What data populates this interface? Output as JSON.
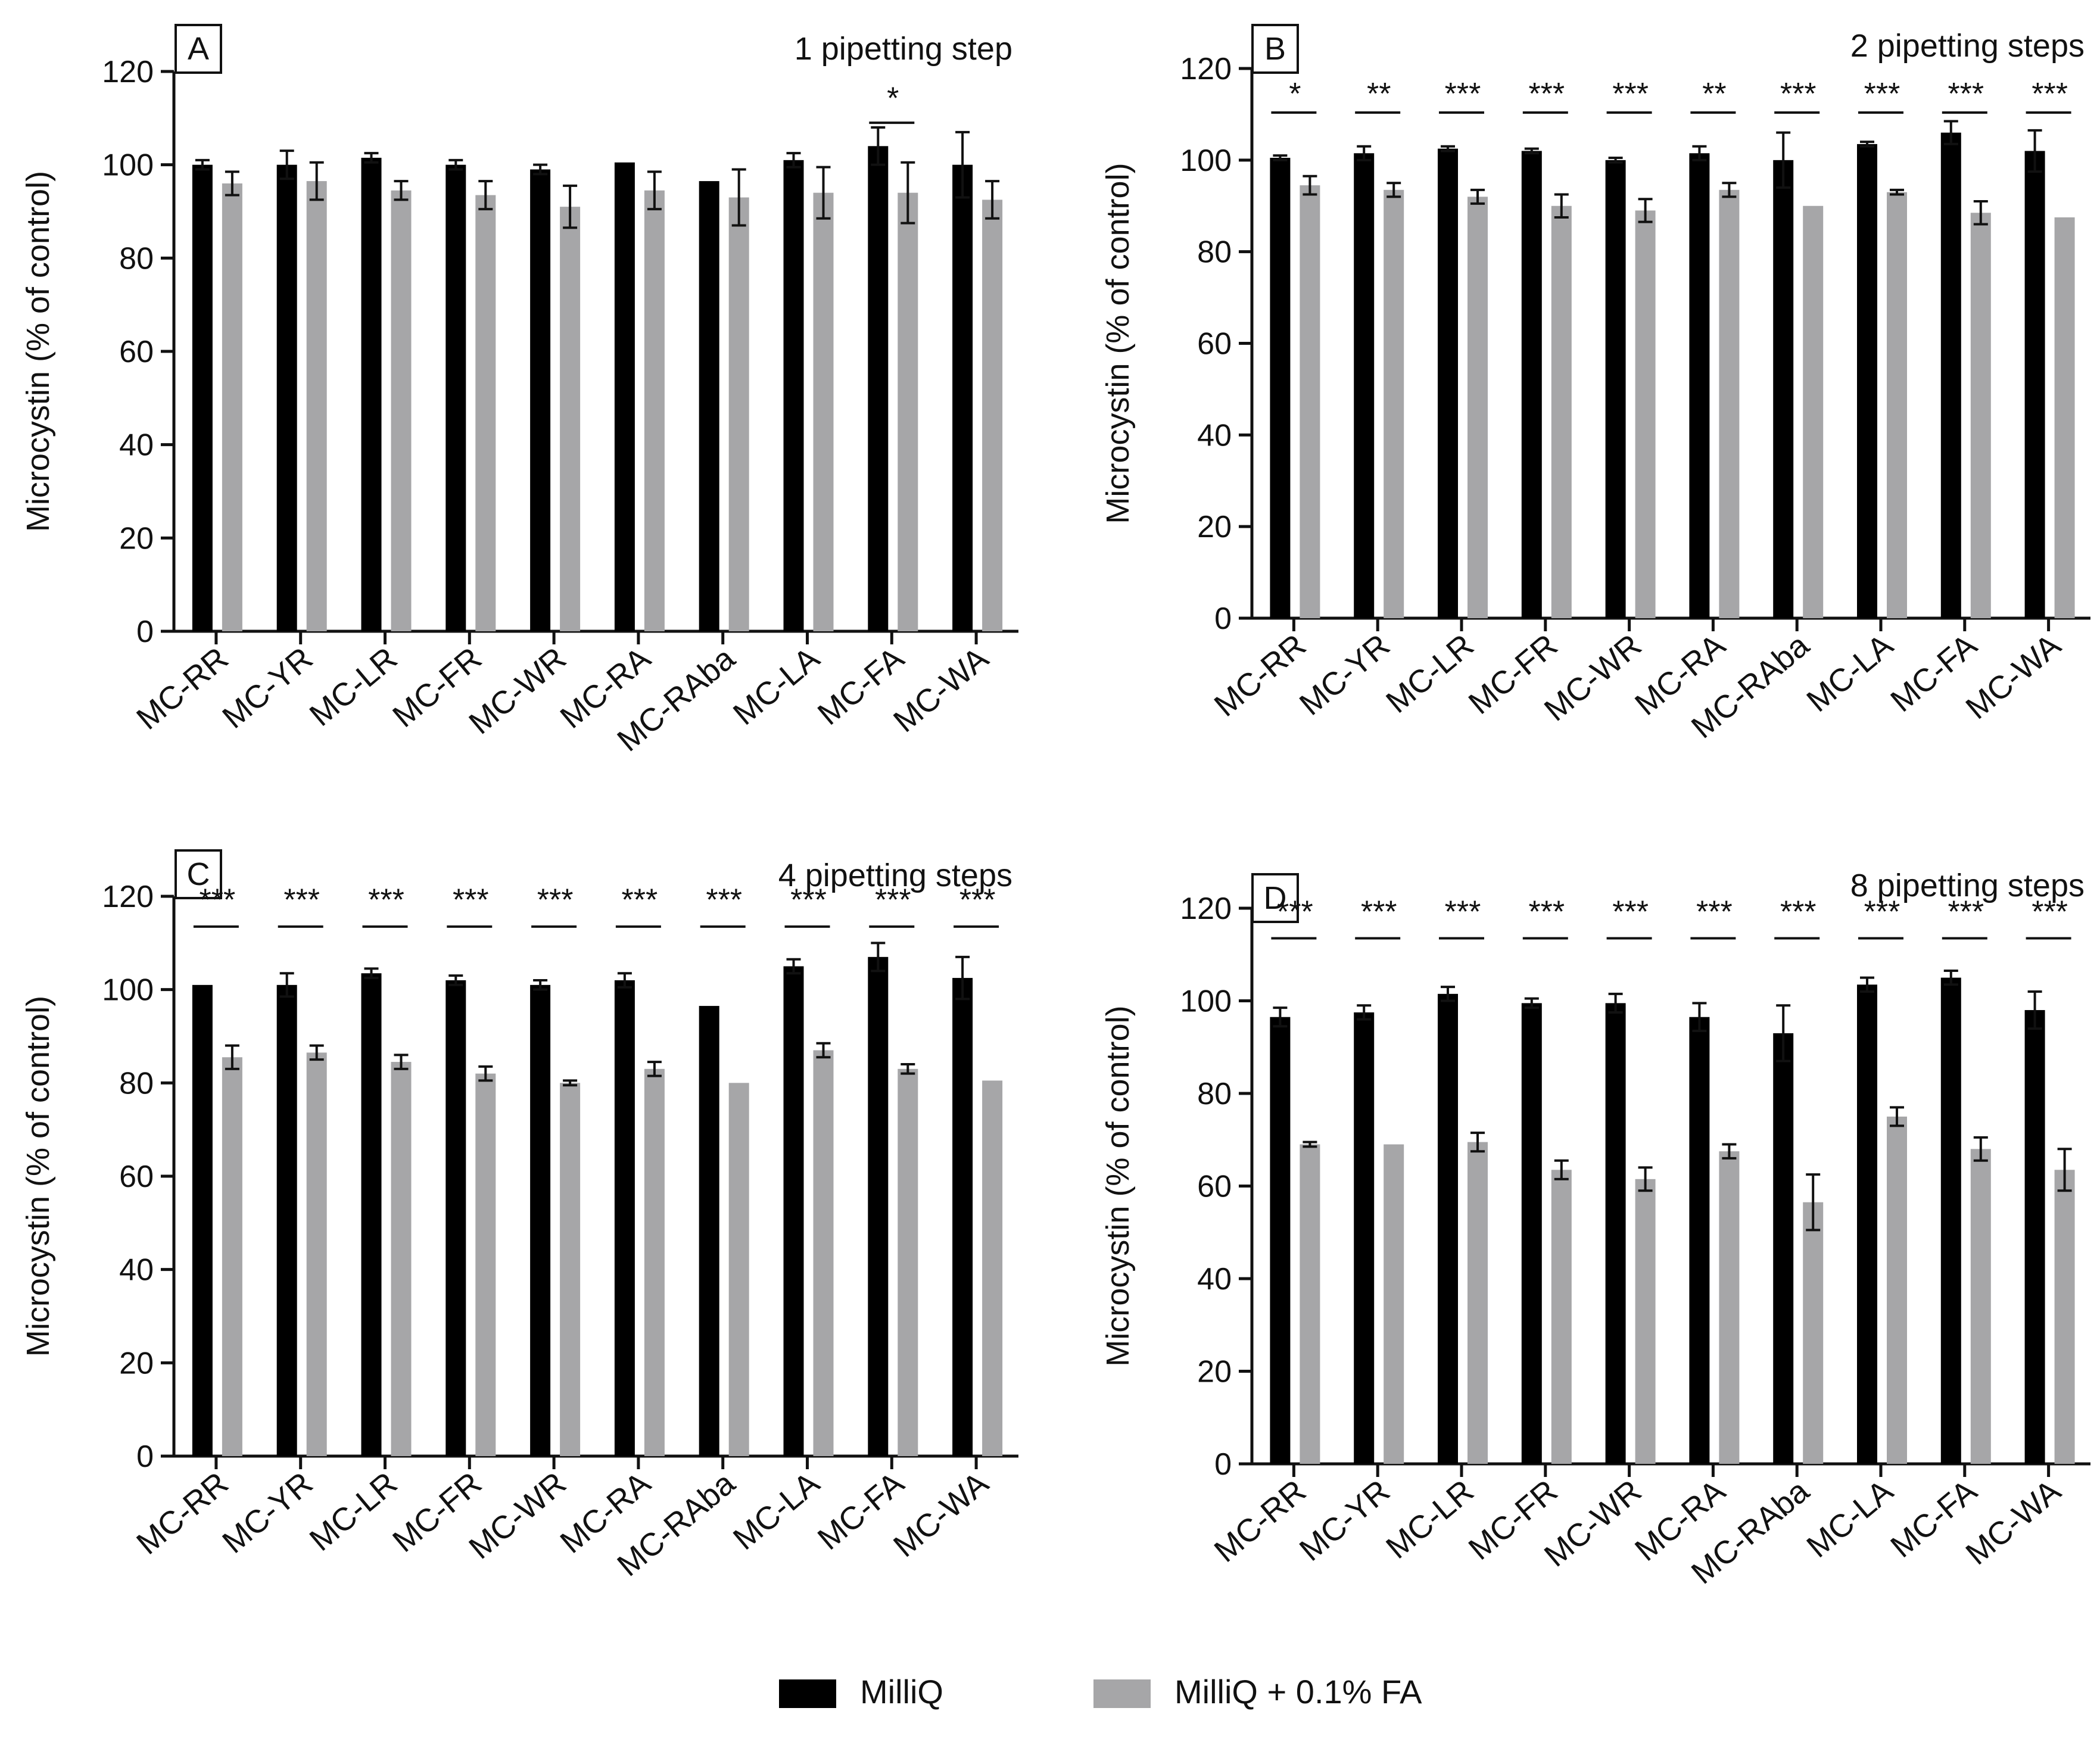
{
  "legend": {
    "position": "bottom-center",
    "entries": [
      {
        "label": "MilliQ",
        "color": "#000000"
      },
      {
        "label": "MilliQ + 0.1% FA",
        "color": "#a6a6a8"
      }
    ]
  },
  "chart_data": [
    {
      "panel": "A",
      "type": "bar",
      "title": "1 pipetting step",
      "ylabel": "Microcystin  (% of control)",
      "xlabel": "",
      "ylim": [
        0,
        120
      ],
      "yticks": [
        0,
        20,
        40,
        60,
        80,
        100,
        120
      ],
      "categories": [
        "MC-RR",
        "MC-YR",
        "MC-LR",
        "MC-FR",
        "MC-WR",
        "MC-RA",
        "MC-RAba",
        "MC-LA",
        "MC-FA",
        "MC-WA"
      ],
      "series": [
        {
          "name": "MilliQ",
          "values": [
            100,
            100,
            101.5,
            100,
            99,
            100.5,
            96.5,
            101,
            104,
            100
          ],
          "errors": [
            1,
            3,
            1,
            1,
            1,
            0,
            0,
            1.5,
            4,
            7
          ]
        },
        {
          "name": "MilliQ + 0.1% FA",
          "values": [
            96,
            96.5,
            94.5,
            93.5,
            91,
            94.5,
            93,
            94,
            94,
            92.5
          ],
          "errors": [
            2.5,
            4,
            2,
            3,
            4.5,
            4,
            6,
            5.5,
            6.5,
            4
          ]
        }
      ],
      "significance": [
        "",
        "",
        "",
        "",
        "",
        "",
        "",
        "",
        "*",
        ""
      ]
    },
    {
      "panel": "B",
      "type": "bar",
      "title": "2 pipetting steps",
      "ylabel": "Microcystin  (% of control)",
      "xlabel": "",
      "ylim": [
        0,
        120
      ],
      "yticks": [
        0,
        20,
        40,
        60,
        80,
        100,
        120
      ],
      "categories": [
        "MC-RR",
        "MC-YR",
        "MC-LR",
        "MC-FR",
        "MC-WR",
        "MC-RA",
        "MC-RAba",
        "MC-LA",
        "MC-FA",
        "MC-WA"
      ],
      "series": [
        {
          "name": "MilliQ",
          "values": [
            100.5,
            101.5,
            102.5,
            102,
            100,
            101.5,
            100,
            103.5,
            106,
            102
          ],
          "errors": [
            0.5,
            1.5,
            0.5,
            0.5,
            0.5,
            1.5,
            6,
            0.5,
            2.5,
            4.5
          ]
        },
        {
          "name": "MilliQ + 0.1% FA",
          "values": [
            94.5,
            93.5,
            92,
            90,
            89,
            93.5,
            90,
            93,
            88.5,
            87.5
          ],
          "errors": [
            2,
            1.5,
            1.5,
            2.5,
            2.5,
            1.5,
            0,
            0.5,
            2.5,
            0
          ]
        }
      ],
      "significance": [
        "*",
        "**",
        "***",
        "***",
        "***",
        "**",
        "***",
        "***",
        "***",
        "***"
      ]
    },
    {
      "panel": "C",
      "type": "bar",
      "title": "4 pipetting steps",
      "ylabel": "Microcystin  (% of control)",
      "xlabel": "",
      "ylim": [
        0,
        120
      ],
      "yticks": [
        0,
        20,
        40,
        60,
        80,
        100,
        120
      ],
      "categories": [
        "MC-RR",
        "MC-YR",
        "MC-LR",
        "MC-FR",
        "MC-WR",
        "MC-RA",
        "MC-RAba",
        "MC-LA",
        "MC-FA",
        "MC-WA"
      ],
      "series": [
        {
          "name": "MilliQ",
          "values": [
            101,
            101,
            103.5,
            102,
            101,
            102,
            96.5,
            105,
            107,
            102.5
          ],
          "errors": [
            0,
            2.5,
            1,
            1,
            1,
            1.5,
            0,
            1.5,
            3,
            4.5
          ]
        },
        {
          "name": "MilliQ + 0.1% FA",
          "values": [
            85.5,
            86.5,
            84.5,
            82,
            80,
            83,
            80,
            87,
            83,
            80.5
          ],
          "errors": [
            2.5,
            1.5,
            1.5,
            1.5,
            0.5,
            1.5,
            0,
            1.5,
            1,
            0
          ]
        }
      ],
      "significance": [
        "***",
        "***",
        "***",
        "***",
        "***",
        "***",
        "***",
        "***",
        "***",
        "***"
      ]
    },
    {
      "panel": "D",
      "type": "bar",
      "title": "8 pipetting steps",
      "ylabel": "Microcystin  (% of control)",
      "xlabel": "",
      "ylim": [
        0,
        120
      ],
      "yticks": [
        0,
        20,
        40,
        60,
        80,
        100,
        120
      ],
      "categories": [
        "MC-RR",
        "MC-YR",
        "MC-LR",
        "MC-FR",
        "MC-WR",
        "MC-RA",
        "MC-RAba",
        "MC-LA",
        "MC-FA",
        "MC-WA"
      ],
      "series": [
        {
          "name": "MilliQ",
          "values": [
            96.5,
            97.5,
            101.5,
            99.5,
            99.5,
            96.5,
            93,
            103.5,
            105,
            98
          ],
          "errors": [
            2,
            1.5,
            1.5,
            1,
            2,
            3,
            6,
            1.5,
            1.5,
            4
          ]
        },
        {
          "name": "MilliQ + 0.1% FA",
          "values": [
            69,
            69,
            69.5,
            63.5,
            61.5,
            67.5,
            56.5,
            75,
            68,
            63.5
          ],
          "errors": [
            0.5,
            0,
            2,
            2,
            2.5,
            1.5,
            6,
            2,
            2.5,
            4.5
          ]
        }
      ],
      "significance": [
        "***",
        "***",
        "***",
        "***",
        "***",
        "***",
        "***",
        "***",
        "***",
        "***"
      ]
    }
  ]
}
